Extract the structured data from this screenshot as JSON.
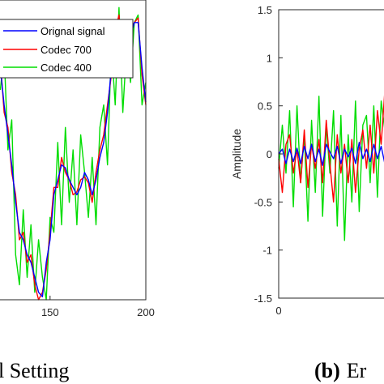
{
  "chart_data": [
    {
      "type": "line",
      "caption": "l Setting",
      "x_ticks": [
        150,
        200
      ],
      "xlim": [
        123,
        200
      ],
      "ylim": [
        -1.0,
        1.0
      ],
      "grid": false,
      "legend_position": "top-right",
      "series": [
        {
          "name": "Orignal signal",
          "color": "#0000ff",
          "x": [
            124,
            126,
            128,
            130,
            132,
            134,
            136,
            138,
            140,
            142,
            144,
            146,
            148,
            150,
            152,
            154,
            156,
            158,
            160,
            162,
            164,
            166,
            168,
            170,
            172,
            174,
            176,
            178,
            180,
            182,
            184,
            186,
            188,
            190,
            192,
            194,
            196,
            198,
            200
          ],
          "y": [
            0.55,
            0.3,
            0.1,
            -0.1,
            -0.35,
            -0.55,
            -0.6,
            -0.7,
            -0.75,
            -0.85,
            -0.95,
            -0.98,
            -0.75,
            -0.6,
            -0.3,
            -0.2,
            -0.1,
            -0.12,
            -0.2,
            -0.25,
            -0.3,
            -0.25,
            -0.15,
            -0.2,
            -0.3,
            -0.2,
            -0.05,
            0.05,
            0.25,
            0.55,
            0.75,
            0.85,
            0.65,
            0.5,
            0.75,
            0.85,
            0.85,
            0.55,
            0.32
          ]
        },
        {
          "name": "Codec 700",
          "color": "#ff0000",
          "x": [
            124,
            126,
            128,
            130,
            132,
            134,
            136,
            138,
            140,
            142,
            144,
            146,
            148,
            150,
            152,
            154,
            156,
            158,
            160,
            162,
            164,
            166,
            168,
            170,
            172,
            174,
            176,
            178,
            180,
            182,
            184,
            186,
            188,
            190,
            192,
            194,
            196,
            198,
            200
          ],
          "y": [
            0.6,
            0.25,
            0.15,
            -0.15,
            -0.3,
            -0.6,
            -0.55,
            -0.75,
            -0.7,
            -0.9,
            -1.0,
            -0.95,
            -0.8,
            -0.55,
            -0.25,
            -0.25,
            -0.05,
            -0.15,
            -0.2,
            -0.3,
            -0.28,
            -0.2,
            -0.18,
            -0.22,
            -0.35,
            -0.15,
            0.0,
            0.1,
            0.3,
            0.5,
            0.8,
            0.9,
            0.6,
            0.55,
            0.8,
            0.85,
            0.88,
            0.5,
            0.3
          ]
        },
        {
          "name": "Codec 400",
          "color": "#00dd00",
          "x": [
            124,
            126,
            128,
            130,
            132,
            134,
            136,
            138,
            140,
            142,
            144,
            146,
            148,
            150,
            152,
            154,
            156,
            158,
            160,
            162,
            164,
            166,
            168,
            170,
            172,
            174,
            176,
            178,
            180,
            182,
            184,
            186,
            188,
            190,
            192,
            194,
            196,
            198,
            200
          ],
          "y": [
            0.4,
            0.65,
            0.0,
            0.2,
            -0.7,
            -0.9,
            -0.4,
            -0.85,
            -0.5,
            -0.95,
            -0.6,
            -0.85,
            -1.0,
            -0.45,
            -0.55,
            0.05,
            -0.5,
            0.15,
            -0.35,
            0.0,
            -0.5,
            0.1,
            -0.15,
            -0.45,
            -0.05,
            -0.5,
            0.15,
            0.3,
            -0.1,
            0.7,
            0.3,
            0.95,
            0.25,
            0.7,
            0.45,
            0.85,
            0.9,
            0.3,
            0.45
          ]
        }
      ]
    },
    {
      "type": "line",
      "caption_prefix": "(b)",
      "caption": "Er",
      "ylabel": "Amplitude",
      "y_ticks": [
        "1.5",
        "1",
        "0.5",
        "0",
        "-0.5",
        "-1",
        "-1.5"
      ],
      "x_ticks": [
        "0"
      ],
      "ylim": [
        -1.5,
        1.5
      ],
      "xlim": [
        0,
        62
      ],
      "grid": false,
      "series": [
        {
          "color": "#0000ff",
          "x": [
            0,
            2,
            4,
            6,
            8,
            10,
            12,
            14,
            16,
            18,
            20,
            22,
            24,
            26,
            28,
            30,
            32,
            34,
            36,
            38,
            40,
            42,
            44,
            46,
            48,
            50,
            52,
            54,
            56,
            58,
            60,
            62
          ],
          "y": [
            0.0,
            0.05,
            -0.1,
            0.05,
            -0.08,
            0.06,
            -0.1,
            0.08,
            -0.05,
            0.1,
            -0.08,
            0.05,
            -0.12,
            0.1,
            0.02,
            -0.05,
            0.08,
            -0.1,
            0.05,
            -0.03,
            0.06,
            -0.1,
            0.12,
            -0.05,
            0.05,
            -0.08,
            0.1,
            -0.05,
            0.08,
            -0.1,
            0.05,
            0.0
          ]
        },
        {
          "color": "#ff0000",
          "x": [
            0,
            2,
            4,
            6,
            8,
            10,
            12,
            14,
            16,
            18,
            20,
            22,
            24,
            26,
            28,
            30,
            32,
            34,
            36,
            38,
            40,
            42,
            44,
            46,
            48,
            50,
            52,
            54,
            56,
            58,
            60,
            62
          ],
          "y": [
            -0.05,
            -0.4,
            0.1,
            0.2,
            -0.2,
            0.05,
            -0.3,
            0.25,
            -0.35,
            0.1,
            -0.15,
            0.15,
            -0.3,
            0.35,
            -0.1,
            -0.5,
            0.2,
            -0.2,
            0.1,
            -0.3,
            0.15,
            -0.4,
            0.05,
            0.25,
            -0.15,
            0.3,
            -0.2,
            0.45,
            0.1,
            0.65,
            -0.05,
            0.3
          ]
        },
        {
          "color": "#00dd00",
          "x": [
            0,
            2,
            4,
            6,
            8,
            10,
            12,
            14,
            16,
            18,
            20,
            22,
            24,
            26,
            28,
            30,
            32,
            34,
            36,
            38,
            40,
            42,
            44,
            46,
            48,
            50,
            52,
            54,
            56,
            58,
            60,
            62
          ],
          "y": [
            -0.15,
            0.3,
            -0.2,
            0.45,
            -0.55,
            0.5,
            -0.3,
            0.2,
            -0.7,
            0.35,
            -0.4,
            0.6,
            -0.65,
            0.3,
            -0.2,
            0.45,
            -0.75,
            0.4,
            -0.9,
            0.2,
            -0.5,
            0.55,
            -0.6,
            0.3,
            0.4,
            -0.3,
            0.5,
            -0.45,
            0.55,
            0.25,
            0.3,
            -0.1
          ]
        }
      ]
    }
  ]
}
